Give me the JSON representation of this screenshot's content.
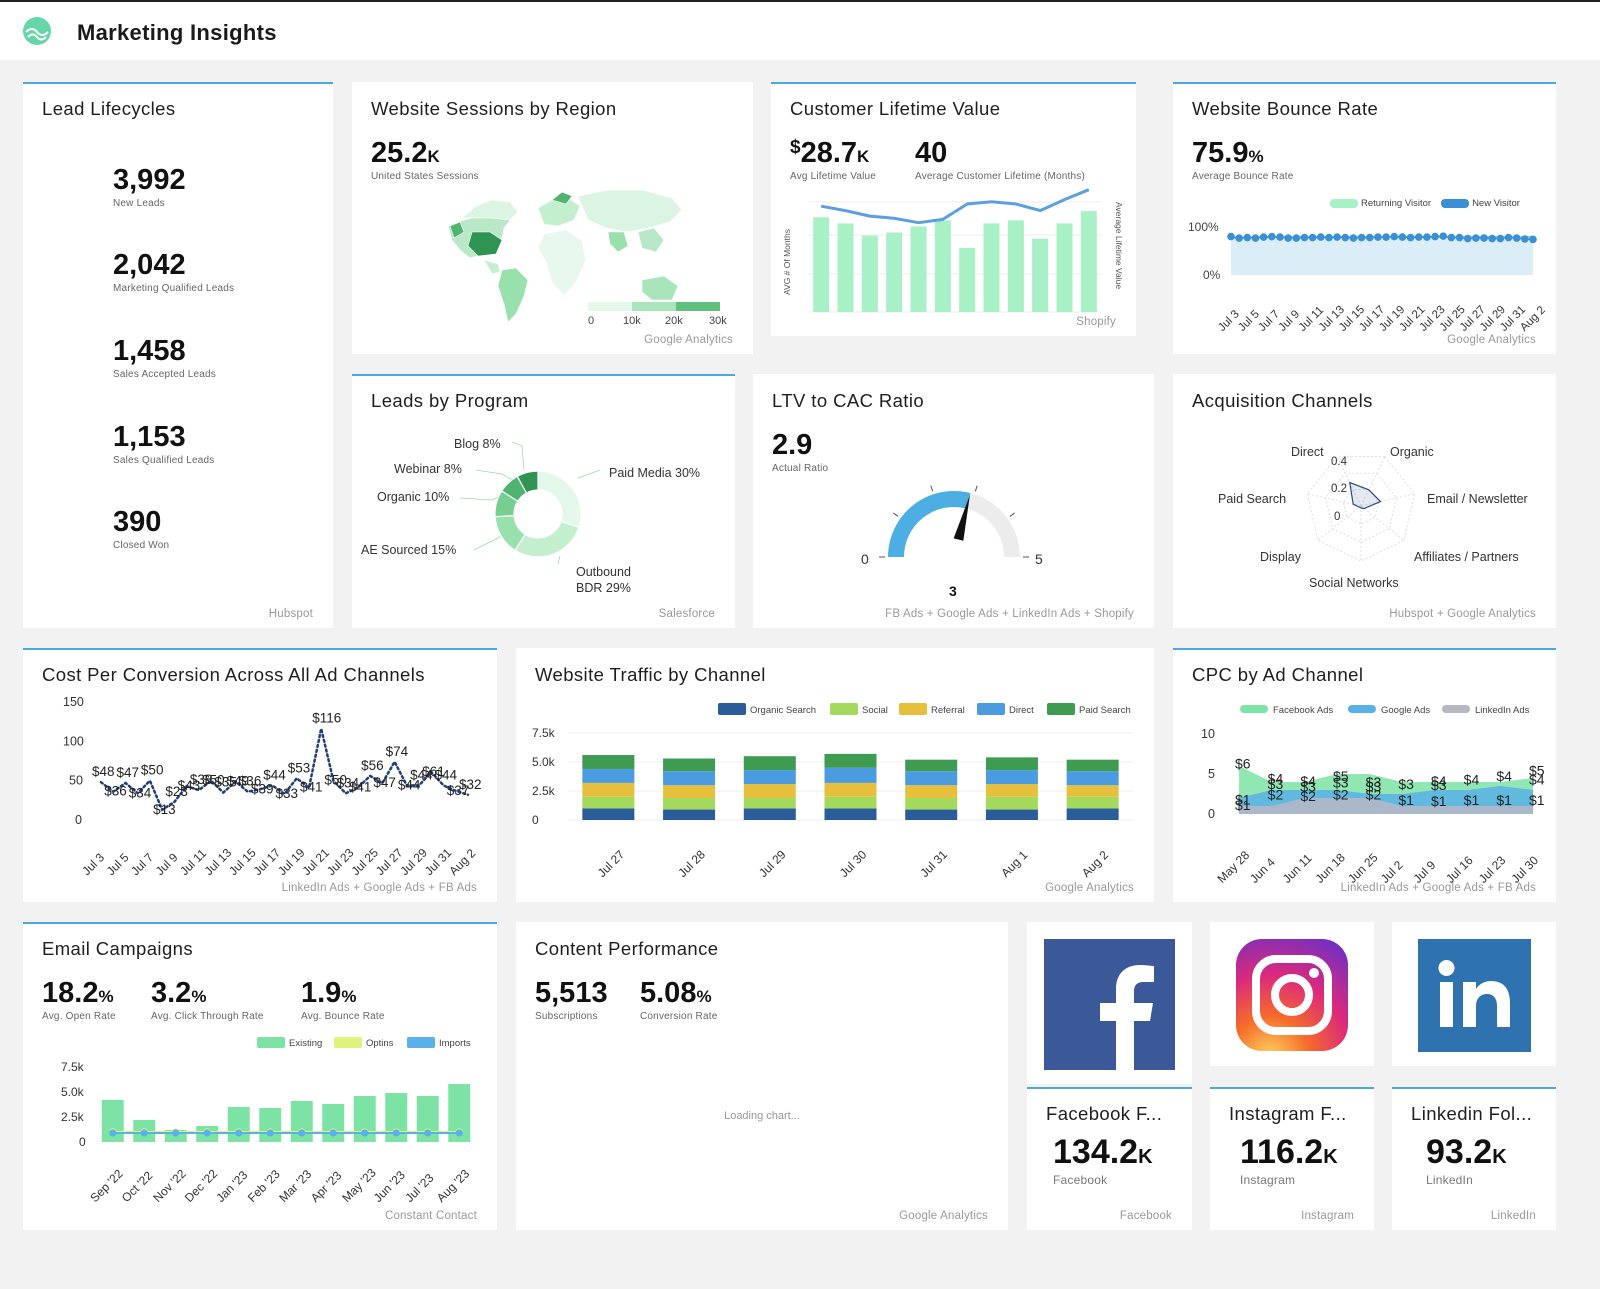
{
  "header": {
    "title": "Marketing Insights"
  },
  "lead_lifecycles": {
    "title": "Lead Lifecycles",
    "source": "Hubspot",
    "items": [
      {
        "value": "3,992",
        "label": "New Leads"
      },
      {
        "value": "2,042",
        "label": "Marketing Qualified Leads"
      },
      {
        "value": "1,458",
        "label": "Sales Accepted Leads"
      },
      {
        "value": "1,153",
        "label": "Sales Qualified Leads"
      },
      {
        "value": "390",
        "label": "Closed Won"
      }
    ]
  },
  "sessions_by_region": {
    "title": "Website Sessions by Region",
    "value": "25.2",
    "suffix": "K",
    "label": "United States Sessions",
    "scale_ticks": [
      "0",
      "10k",
      "20k",
      "30k"
    ],
    "source": "Google Analytics"
  },
  "clv": {
    "title": "Customer Lifetime Value",
    "value1": "28.7",
    "prefix1": "$",
    "suffix1": "K",
    "label1": "Avg Lifetime Value",
    "value2": "40",
    "label2": "Average Customer Lifetime (Months)",
    "y_left_label": "AVG # Of Months",
    "y_right_label": "Average Lifetime Value",
    "source": "Shopify"
  },
  "bounce_rate": {
    "title": "Website Bounce Rate",
    "value": "75.9",
    "suffix": "%",
    "label": "Average Bounce Rate",
    "legend": [
      "Returning Visitor",
      "New Visitor"
    ],
    "source": "Google Analytics"
  },
  "leads_by_program": {
    "title": "Leads by Program",
    "source": "Salesforce",
    "labels": [
      "Blog 8%",
      "Webinar 8%",
      "Organic 10%",
      "AE Sourced 15%",
      "Paid Media 30%",
      "Outbound",
      "BDR 29%"
    ]
  },
  "ltv_cac": {
    "title": "LTV to CAC Ratio",
    "value": "2.9",
    "label": "Actual Ratio",
    "min": "0",
    "max": "5",
    "target": "3",
    "source": "FB Ads + Google Ads + LinkedIn Ads + Shopify"
  },
  "acquisition": {
    "title": "Acquisition Channels",
    "axes": [
      "Organic",
      "Email / Newsletter",
      "Affiliates / Partners",
      "Social Networks",
      "Display",
      "Paid Search",
      "Direct"
    ],
    "ticks": [
      "0.4",
      "0.2",
      "0"
    ],
    "source": "Hubspot + Google Analytics"
  },
  "cost_per_conversion": {
    "title": "Cost Per Conversion Across All Ad Channels",
    "source": "LinkedIn Ads + Google Ads + FB Ads"
  },
  "traffic_by_channel": {
    "title": "Website Traffic by Channel",
    "source": "Google Analytics"
  },
  "cpc": {
    "title": "CPC by Ad Channel",
    "source": "LinkedIn Ads + Google Ads + FB Ads"
  },
  "email": {
    "title": "Email Campaigns",
    "kpis": [
      {
        "value": "18.2",
        "suffix": "%",
        "label": "Avg. Open Rate"
      },
      {
        "value": "3.2",
        "suffix": "%",
        "label": "Avg. Click Through Rate"
      },
      {
        "value": "1.9",
        "suffix": "%",
        "label": "Avg. Bounce Rate"
      }
    ],
    "source": "Constant Contact"
  },
  "content": {
    "title": "Content Performance",
    "kpis": [
      {
        "value": "5,513",
        "suffix": "",
        "label": "Subscriptions"
      },
      {
        "value": "5.08",
        "suffix": "%",
        "label": "Conversion Rate"
      }
    ],
    "loading": "Loading chart...",
    "source": "Google Analytics"
  },
  "social": [
    {
      "title": "Facebook F...",
      "value": "134.2",
      "suffix": "K",
      "label": "Facebook",
      "source": "Facebook",
      "icon": "facebook-icon"
    },
    {
      "title": "Instagram F...",
      "value": "116.2",
      "suffix": "K",
      "label": "Instagram",
      "source": "Instagram",
      "icon": "instagram-icon"
    },
    {
      "title": "Linkedin Fol...",
      "value": "93.2",
      "suffix": "K",
      "label": "LinkedIn",
      "source": "LinkedIn",
      "icon": "linkedin-icon"
    }
  ],
  "chart_data": [
    {
      "id": "clv",
      "type": "bar",
      "bar_values": [
        31,
        29,
        25,
        26,
        28,
        30,
        21,
        29,
        30,
        24,
        29,
        33
      ],
      "line_values": [
        0.78,
        0.74,
        0.69,
        0.67,
        0.63,
        0.66,
        0.8,
        0.82,
        0.8,
        0.74,
        0.84,
        0.93
      ],
      "colors": {
        "bar": "#a8f0c6",
        "line": "#5b9fe0"
      }
    },
    {
      "id": "bounce_rate",
      "type": "line",
      "x": [
        "Jul 3",
        "Jul 5",
        "Jul 7",
        "Jul 9",
        "Jul 11",
        "Jul 13",
        "Jul 15",
        "Jul 17",
        "Jul 19",
        "Jul 21",
        "Jul 23",
        "Jul 25",
        "Jul 27",
        "Jul 29",
        "Jul 31",
        "Aug 2"
      ],
      "ylim": [
        0,
        100
      ],
      "yticks": [
        "100%",
        "0%"
      ],
      "series": [
        {
          "name": "Returning Visitor",
          "color": "#7de3a4"
        },
        {
          "name": "New Visitor",
          "color": "#3b8fd4"
        }
      ],
      "new_visitor": [
        80,
        77,
        78,
        77,
        79,
        80,
        79,
        77,
        77,
        78,
        78,
        79,
        78,
        79,
        78,
        77,
        78,
        78,
        79,
        79,
        80,
        79,
        78,
        79,
        79,
        80,
        81,
        78,
        78,
        76,
        77,
        77,
        76,
        76,
        78,
        77,
        75,
        74
      ],
      "returning_visitor": [
        78,
        78,
        79,
        78,
        80,
        78,
        80,
        80,
        79,
        80,
        79,
        80,
        79,
        80,
        79,
        80,
        79,
        80,
        79,
        80,
        79,
        80,
        79,
        80,
        79,
        80,
        79,
        80,
        79,
        80,
        79,
        80,
        79,
        80,
        79,
        80,
        79,
        80
      ]
    },
    {
      "id": "leads_by_program",
      "type": "pie",
      "categories": [
        "Paid Media",
        "Outbound BDR",
        "AE Sourced",
        "Organic",
        "Webinar",
        "Blog"
      ],
      "values": [
        30,
        29,
        15,
        10,
        8,
        8
      ],
      "colors": [
        "#e4f8e9",
        "#c3efcf",
        "#98e0ac",
        "#76cf90",
        "#4fb46f",
        "#2f9451"
      ]
    },
    {
      "id": "ltv_cac",
      "type": "gauge",
      "value": 2.9,
      "min": 0,
      "max": 5,
      "target": 3
    },
    {
      "id": "acquisition",
      "type": "radar",
      "categories": [
        "Organic",
        "Email / Newsletter",
        "Affiliates / Partners",
        "Social Networks",
        "Display",
        "Paid Search",
        "Direct"
      ],
      "values": [
        0.18,
        0.2,
        0.04,
        0.02,
        0.02,
        0.08,
        0.26
      ],
      "max": 0.55
    },
    {
      "id": "cost_per_conversion",
      "type": "line",
      "x": [
        "Jul 3",
        "Jul 5",
        "Jul 7",
        "Jul 9",
        "Jul 11",
        "Jul 13",
        "Jul 15",
        "Jul 17",
        "Jul 19",
        "Jul 21",
        "Jul 23",
        "Jul 25",
        "Jul 27",
        "Jul 29",
        "Jul 31",
        "Aug 2"
      ],
      "ylim": [
        0,
        150
      ],
      "yticks": [
        0,
        50,
        100,
        150
      ],
      "values": [
        48,
        36,
        47,
        34,
        50,
        13,
        23,
        43,
        38,
        50,
        35,
        49,
        36,
        39,
        44,
        33,
        53,
        41,
        116,
        50,
        34,
        41,
        56,
        47,
        74,
        44,
        44,
        61,
        44,
        37,
        32
      ],
      "labels": [
        "$48",
        "$36",
        "$47",
        "$34",
        "$50",
        "$13",
        "$23",
        "$43",
        "$38",
        "$50",
        "$35",
        "$49",
        "$36",
        "$39",
        "$44",
        "$33",
        "$53",
        "$41",
        "$116",
        "$50",
        "$34",
        "$41",
        "$56",
        "$47",
        "$74",
        "$44",
        "$44",
        "$61",
        "$44",
        "$37",
        "$32"
      ],
      "color": "#1f3f7a"
    },
    {
      "id": "traffic_by_channel",
      "type": "bar",
      "stacked": true,
      "categories": [
        "Jul 27",
        "Jul 28",
        "Jul 29",
        "Jul 30",
        "Jul 31",
        "Aug 1",
        "Aug 2"
      ],
      "ylim": [
        0,
        7500
      ],
      "yticks": [
        "0",
        "2.5k",
        "5.0k",
        "7.5k"
      ],
      "series": [
        {
          "name": "Organic Search",
          "color": "#2a5c9a",
          "values": [
            1000,
            900,
            1000,
            1000,
            900,
            900,
            1000
          ]
        },
        {
          "name": "Social",
          "color": "#a3d95c",
          "values": [
            1000,
            1000,
            900,
            1000,
            1000,
            1100,
            1000
          ]
        },
        {
          "name": "Referral",
          "color": "#e6c03d",
          "values": [
            1200,
            1100,
            1200,
            1200,
            1100,
            1100,
            1000
          ]
        },
        {
          "name": "Direct",
          "color": "#4a9be0",
          "values": [
            1200,
            1200,
            1200,
            1300,
            1200,
            1200,
            1200
          ]
        },
        {
          "name": "Paid Search",
          "color": "#3f9a52",
          "values": [
            1200,
            1100,
            1200,
            1200,
            1000,
            1100,
            1000
          ]
        }
      ]
    },
    {
      "id": "cpc",
      "type": "area",
      "x": [
        "May 28",
        "Jun 4",
        "Jun 11",
        "Jun 18",
        "Jun 25",
        "Jul 2",
        "Jul 9",
        "Jul 16",
        "Jul 23",
        "Jul 30"
      ],
      "ylim": [
        0,
        10
      ],
      "yticks": [
        0,
        5,
        10
      ],
      "series": [
        {
          "name": "Facebook Ads",
          "color": "#7de3a4",
          "values": [
            6,
            4,
            4,
            5,
            5,
            4,
            4,
            4,
            4,
            4.5
          ]
        },
        {
          "name": "Google Ads",
          "color": "#5ab0e8",
          "values": [
            2,
            3,
            3,
            3,
            2.5,
            2.5,
            3,
            3,
            3.5,
            3
          ]
        },
        {
          "name": "LinkedIn Ads",
          "color": "#b7b7c4",
          "values": [
            1,
            1,
            2,
            2,
            2,
            1,
            1,
            1,
            1,
            1
          ]
        }
      ],
      "labels": [
        {
          "text": "$6",
          "xi": 0,
          "y": 6.2
        },
        {
          "text": "$4",
          "xi": 1,
          "y": 4.3
        },
        {
          "text": "$3",
          "xi": 1,
          "y": 3.6
        },
        {
          "text": "$4",
          "xi": 2,
          "y": 4.0
        },
        {
          "text": "$3",
          "xi": 2,
          "y": 3.3
        },
        {
          "text": "$5",
          "xi": 3,
          "y": 4.6
        },
        {
          "text": "$3",
          "xi": 3,
          "y": 3.8
        },
        {
          "text": "$3",
          "xi": 4,
          "y": 3.9
        },
        {
          "text": "$3",
          "xi": 4,
          "y": 3.3
        },
        {
          "text": "$3",
          "xi": 5,
          "y": 3.6
        },
        {
          "text": "$4",
          "xi": 6,
          "y": 4.0
        },
        {
          "text": "$3",
          "xi": 6,
          "y": 3.5
        },
        {
          "text": "$4",
          "xi": 7,
          "y": 4.2
        },
        {
          "text": "$4",
          "xi": 8,
          "y": 4.6
        },
        {
          "text": "$5",
          "xi": 9,
          "y": 5.3
        },
        {
          "text": "$4",
          "xi": 9,
          "y": 4.2
        },
        {
          "text": "$1",
          "xi": 0,
          "y": 1.7
        },
        {
          "text": "$1",
          "xi": 0,
          "y": 1.0
        },
        {
          "text": "$2",
          "xi": 1,
          "y": 2.3
        },
        {
          "text": "$2",
          "xi": 2,
          "y": 2.1
        },
        {
          "text": "$2",
          "xi": 3,
          "y": 2.3
        },
        {
          "text": "$2",
          "xi": 4,
          "y": 2.3
        },
        {
          "text": "$1",
          "xi": 5,
          "y": 1.6
        },
        {
          "text": "$1",
          "xi": 6,
          "y": 1.5
        },
        {
          "text": "$1",
          "xi": 7,
          "y": 1.6
        },
        {
          "text": "$1",
          "xi": 8,
          "y": 1.6
        },
        {
          "text": "$1",
          "xi": 9,
          "y": 1.6
        }
      ]
    },
    {
      "id": "email",
      "type": "bar",
      "categories": [
        "Sep '22",
        "Oct '22",
        "Nov '22",
        "Dec '22",
        "Jan '23",
        "Feb '23",
        "Mar '23",
        "Apr '23",
        "May '23",
        "Jun '23",
        "Jul '23",
        "Aug '23"
      ],
      "ylim": [
        0,
        7500
      ],
      "yticks": [
        "0",
        "2.5k",
        "5.0k",
        "7.5k"
      ],
      "series": [
        {
          "name": "Existing",
          "color": "#7de3a4",
          "values": [
            4200,
            2200,
            1200,
            1600,
            3500,
            3400,
            4100,
            3800,
            4600,
            4900,
            4600,
            5800
          ]
        },
        {
          "name": "Optins",
          "color": "#dff27a",
          "values": [
            1000,
            1000,
            1000,
            1000,
            1000,
            1000,
            1000,
            1000,
            1000,
            1000,
            1000,
            1000
          ]
        },
        {
          "name": "Imports",
          "color": "#5ab0e8",
          "values": [
            900,
            900,
            900,
            900,
            900,
            900,
            900,
            900,
            900,
            900,
            900,
            900
          ]
        }
      ]
    }
  ]
}
